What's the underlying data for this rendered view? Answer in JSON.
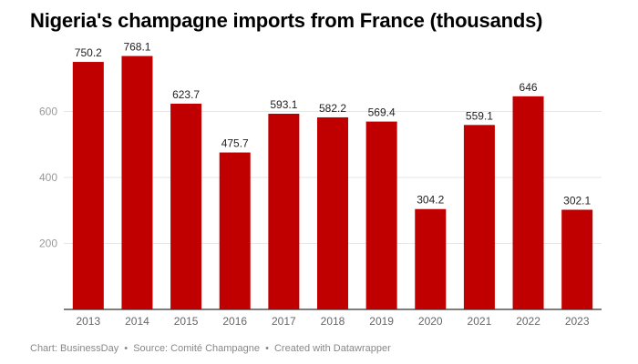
{
  "title": "Nigeria's champagne imports from France (thousands)",
  "footer": {
    "chart_label": "Chart: BusinessDay",
    "source_label": "Source: Comité Champagne",
    "created_label": "Created with Datawrapper",
    "separator": "•"
  },
  "colors": {
    "bar": "#c00000",
    "grid": "#e6e6e6",
    "axis": "#333333"
  },
  "chart_data": {
    "type": "bar",
    "title": "Nigeria's champagne imports from France (thousands)",
    "xlabel": "",
    "ylabel": "",
    "categories": [
      "2013",
      "2014",
      "2015",
      "2016",
      "2017",
      "2018",
      "2019",
      "2020",
      "2021",
      "2022",
      "2023"
    ],
    "values": [
      750.2,
      768.1,
      623.7,
      475.7,
      593.1,
      582.2,
      569.4,
      304.2,
      559.1,
      646,
      302.1
    ],
    "data_labels": [
      "750.2",
      "768.1",
      "623.7",
      "475.7",
      "593.1",
      "582.2",
      "569.4",
      "304.2",
      "559.1",
      "646",
      "302.1"
    ],
    "yticks": [
      200,
      400,
      600
    ],
    "ytick_labels": [
      "200",
      "400",
      "600"
    ],
    "ylim": [
      0,
      800
    ],
    "grid": true,
    "legend": false
  }
}
